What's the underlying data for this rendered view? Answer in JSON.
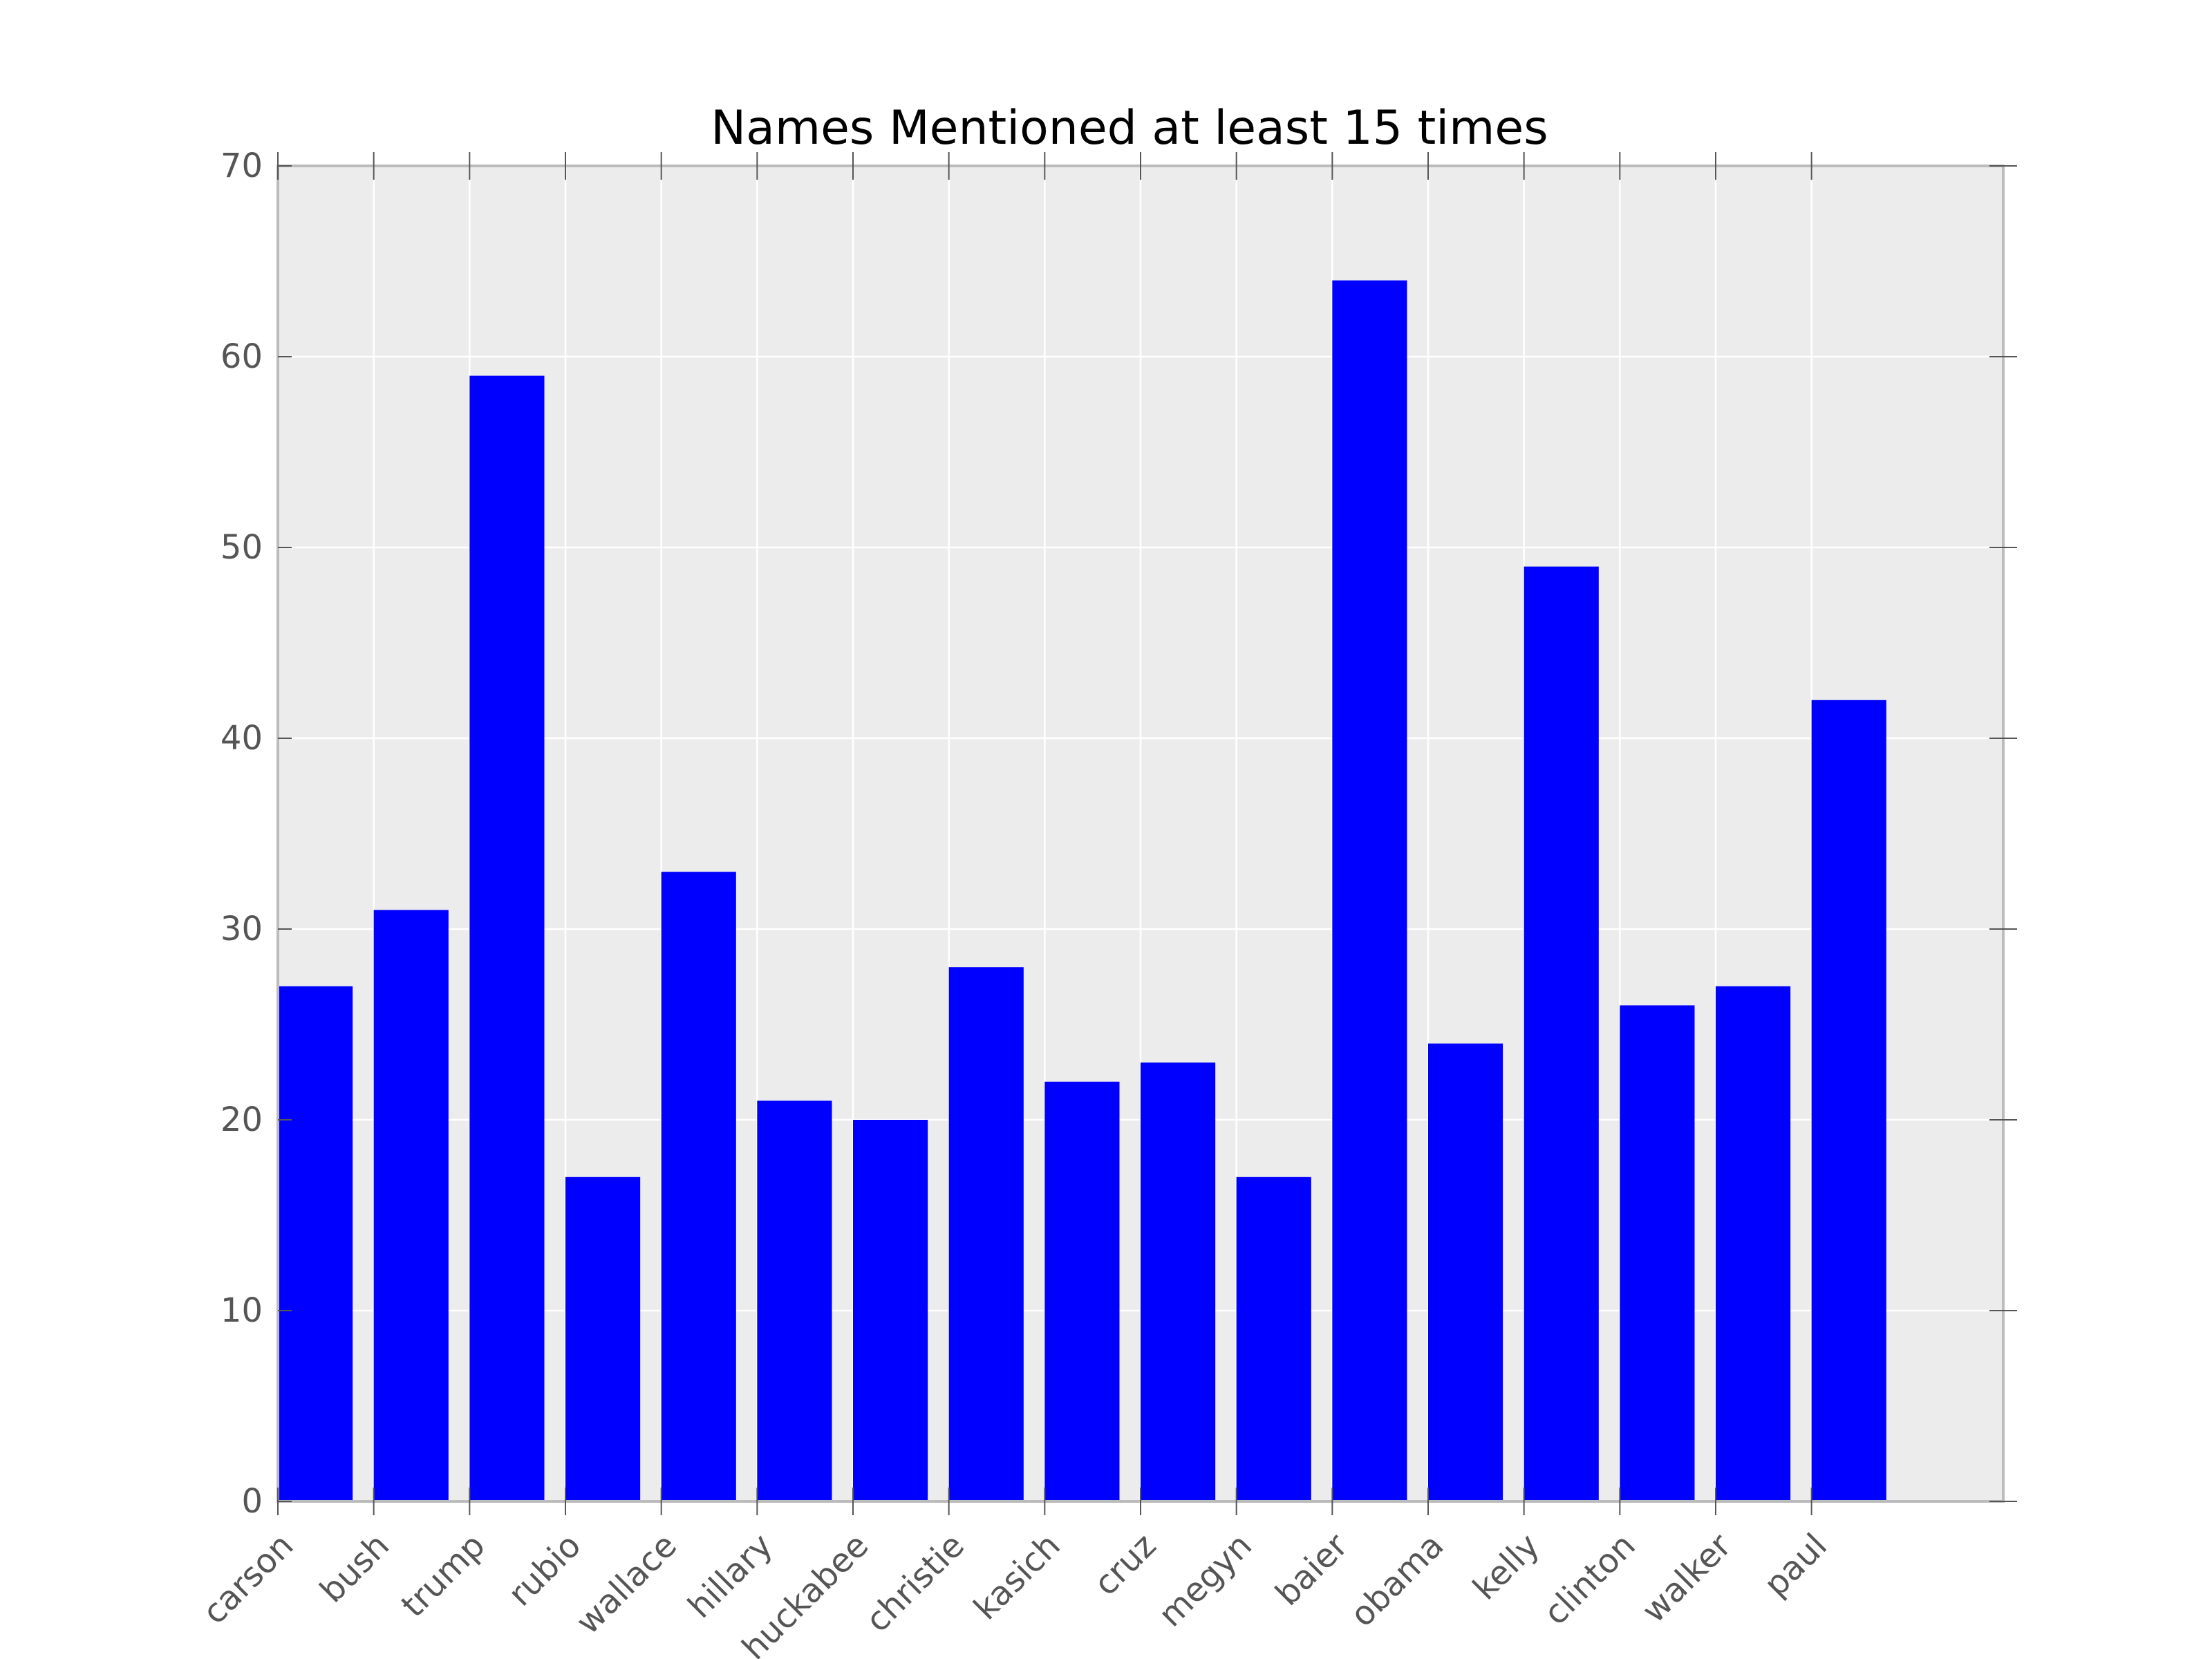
{
  "chart_data": {
    "type": "bar",
    "title": "Names Mentioned at least 15 times",
    "xlabel": "",
    "ylabel": "",
    "categories": [
      "carson",
      "bush",
      "trump",
      "rubio",
      "wallace",
      "hillary",
      "huckabee",
      "christie",
      "kasich",
      "cruz",
      "megyn",
      "baier",
      "obama",
      "kelly",
      "clinton",
      "walker",
      "paul"
    ],
    "values": [
      27,
      31,
      59,
      17,
      33,
      21,
      20,
      28,
      22,
      23,
      17,
      64,
      24,
      49,
      26,
      27,
      42
    ],
    "ylim": [
      0,
      70
    ],
    "xlim": [
      0,
      18
    ],
    "yticks": [
      0,
      10,
      20,
      30,
      40,
      50,
      60,
      70
    ],
    "grid": true,
    "bar_color": "#0000ff",
    "plot_background": "#ececec",
    "frame_color": "#bcbcbc",
    "text_color": "#555555"
  }
}
